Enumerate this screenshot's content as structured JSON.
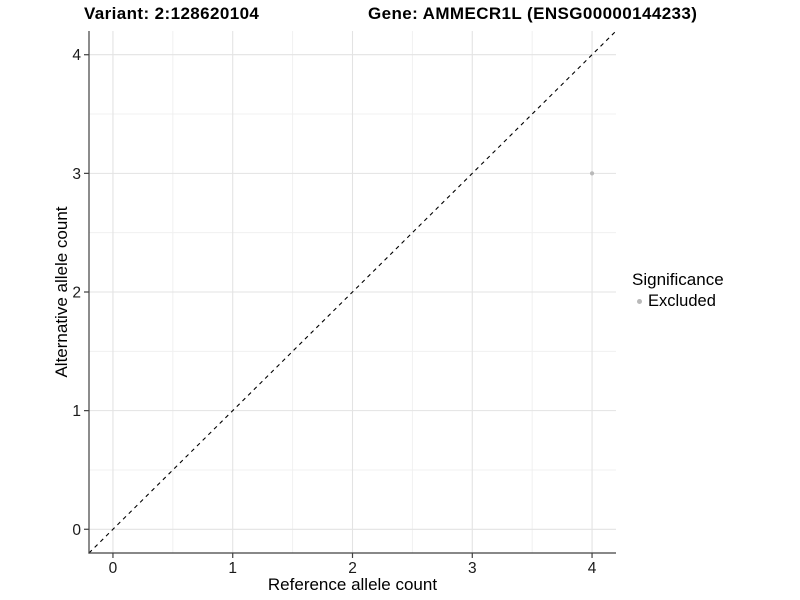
{
  "chart_data": {
    "type": "scatter",
    "titles": {
      "left": "Variant: 2:128620104",
      "right": "Gene: AMMECR1L (ENSG00000144233)"
    },
    "xlabel": "Reference allele count",
    "ylabel": "Alternative allele count",
    "xlim": [
      -0.2,
      4.2
    ],
    "ylim": [
      -0.2,
      4.2
    ],
    "xticks": [
      0,
      1,
      2,
      3,
      4
    ],
    "yticks": [
      0,
      1,
      2,
      3,
      4
    ],
    "x_minor_gridlines": [
      0.5,
      1.5,
      2.5,
      3.5
    ],
    "y_minor_gridlines": [
      0.5,
      1.5,
      2.5,
      3.5
    ],
    "grid": "on",
    "identity_line": {
      "style": "dashed",
      "color": "#000000",
      "from": [
        -0.2,
        -0.2
      ],
      "to": [
        4.2,
        4.2
      ]
    },
    "series": [
      {
        "name": "Excluded",
        "color": "#b9b9b9",
        "points": [
          {
            "x": 4,
            "y": 3
          }
        ]
      }
    ],
    "legend": {
      "title": "Significance",
      "position": "right",
      "items": [
        {
          "label": "Excluded",
          "color": "#b9b9b9"
        }
      ]
    }
  },
  "colors": {
    "background": "#ffffff",
    "axis_line": "#404040",
    "tick_text": "#1a1a1a",
    "grid_major": "#e3e3e3",
    "grid_minor": "#f0f0f0",
    "text": "#000000"
  }
}
